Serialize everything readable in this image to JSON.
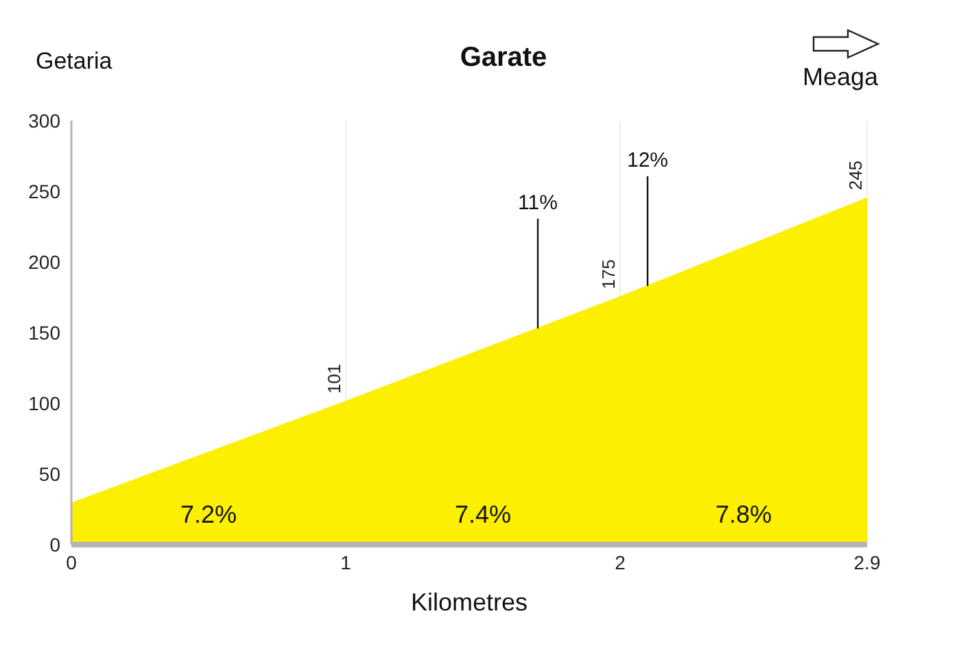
{
  "chart_data": {
    "type": "area",
    "title": "Garate",
    "xlabel": "Kilometres",
    "annotations": [
      "Getaria",
      "7.2%",
      "7.4%",
      "7.8%",
      "Meaga",
      {
        "text": "11%",
        "x": 1.7,
        "y": 153
      },
      {
        "text": "12%",
        "x": 2.1,
        "y": 183
      }
    ],
    "x": [
      0,
      1,
      2,
      2.9
    ],
    "values": [
      29,
      101,
      175,
      245
    ],
    "color": "#fcef00",
    "value_labels": [
      null,
      "101",
      "175",
      "245"
    ],
    "xlim": [
      0,
      2.9
    ],
    "xticks": [
      0,
      1,
      2,
      2.9
    ],
    "ylim": [
      0,
      300
    ],
    "yticks": [
      0,
      50,
      100,
      150,
      200,
      250,
      300
    ],
    "grid": "x"
  }
}
